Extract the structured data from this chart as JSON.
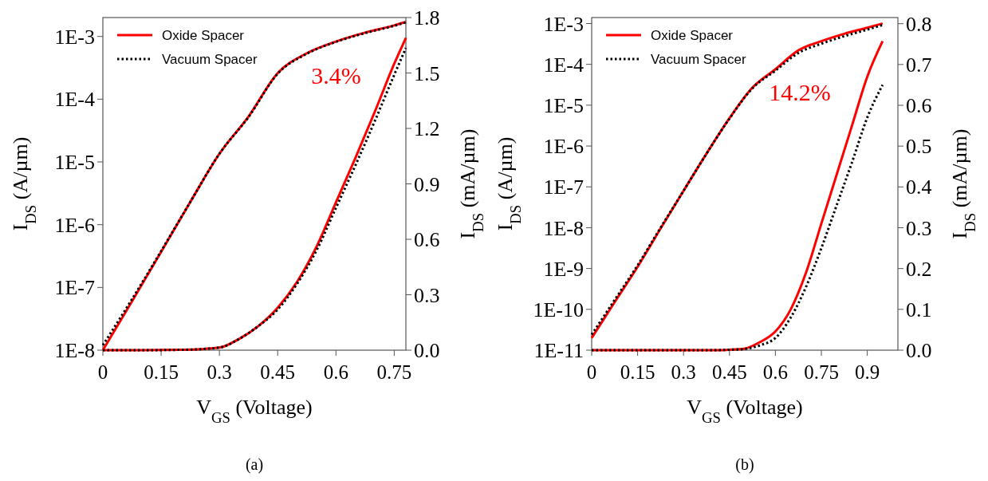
{
  "chart_data": [
    {
      "type": "line",
      "xlabel": "V$_{GS}$ (Voltage)",
      "ylabel": "I$_{DS}$ (A/µm)",
      "y2label": "I$_{DS}$ (mA/µm)",
      "log": "y",
      "legend": "top left",
      "xlim": [
        0,
        0.78
      ],
      "xticks": [
        0,
        0.15,
        0.3,
        0.45,
        0.6,
        0.75
      ],
      "ylim": [
        1e-08,
        0.002
      ],
      "yticks": [
        {
          "value": 1e-08,
          "label": "1E-8"
        },
        {
          "value": 1e-07,
          "label": "1E-7"
        },
        {
          "value": 1e-06,
          "label": "1E-6"
        },
        {
          "value": 1e-05,
          "label": "1E-5"
        },
        {
          "value": 0.0001,
          "label": "1E-4"
        },
        {
          "value": 0.001,
          "label": "1E-3"
        }
      ],
      "y2lim": [
        0,
        1.8
      ],
      "y2ticks": [
        {
          "value": 0,
          "label": "0.0"
        },
        {
          "value": 0.3,
          "label": "0.3"
        },
        {
          "value": 0.6,
          "label": "0.6"
        },
        {
          "value": 0.9,
          "label": "0.9"
        },
        {
          "value": 1.2,
          "label": "1.2"
        },
        {
          "value": 1.5,
          "label": "1.5"
        },
        {
          "value": 1.8,
          "label": "1.8"
        }
      ],
      "annotations": [
        "3.4%",
        "(a)"
      ],
      "series": [
        {
          "name": "Oxide Spacer",
          "color": "#ff0000",
          "line_style": "solid",
          "x": [
            0,
            0.075,
            0.15,
            0.225,
            0.3,
            0.375,
            0.45,
            0.525,
            0.6,
            0.675,
            0.75,
            0.78
          ],
          "values": [
            1e-08,
            6e-08,
            3.7e-07,
            2.3e-06,
            1.35e-05,
            5.3e-05,
            0.00026,
            0.00054,
            0.00083,
            0.00115,
            0.0015,
            0.0017
          ]
        },
        {
          "name": "Vacuum Spacer",
          "color": "#000000",
          "line_style": "dotted",
          "x": [
            0,
            0.075,
            0.15,
            0.225,
            0.3,
            0.375,
            0.45,
            0.525,
            0.6,
            0.675,
            0.75,
            0.78
          ],
          "values": [
            1.2e-08,
            6.5e-08,
            3.8e-07,
            2.3e-06,
            1.35e-05,
            5.2e-05,
            0.000255,
            0.00053,
            0.00082,
            0.00113,
            0.00148,
            0.00168
          ]
        },
        {
          "color": "#ff0000",
          "line_style": "solid",
          "axis": "y2",
          "x": [
            0,
            0.1,
            0.2,
            0.3,
            0.35,
            0.4,
            0.45,
            0.5,
            0.55,
            0.6,
            0.65,
            0.7,
            0.75,
            0.78
          ],
          "values": [
            0,
            0,
            0.002,
            0.014,
            0.06,
            0.13,
            0.23,
            0.37,
            0.56,
            0.8,
            1.04,
            1.29,
            1.55,
            1.69
          ]
        },
        {
          "color": "#000000",
          "line_style": "dotted",
          "axis": "y2",
          "x": [
            0,
            0.1,
            0.2,
            0.3,
            0.35,
            0.4,
            0.45,
            0.5,
            0.55,
            0.6,
            0.65,
            0.7,
            0.75,
            0.78
          ],
          "values": [
            0,
            0,
            0.002,
            0.014,
            0.06,
            0.13,
            0.22,
            0.36,
            0.54,
            0.77,
            1.0,
            1.24,
            1.49,
            1.635
          ]
        }
      ]
    },
    {
      "type": "line",
      "xlabel": "V$_{GS}$ (Voltage)",
      "ylabel": "I$_{DS}$ (A/µm)",
      "y2label": "I$_{DS}$ (mA/µm)",
      "log": "y",
      "legend": "top left",
      "xlim": [
        0,
        1.0
      ],
      "xticks": [
        0,
        0.15,
        0.3,
        0.45,
        0.6,
        0.75,
        0.9
      ],
      "ylim": [
        1e-11,
        0.0014
      ],
      "yticks": [
        {
          "value": 1e-11,
          "label": "1E-11"
        },
        {
          "value": 1e-10,
          "label": "1E-10"
        },
        {
          "value": 1e-09,
          "label": "1E-9"
        },
        {
          "value": 1e-08,
          "label": "1E-8"
        },
        {
          "value": 1e-07,
          "label": "1E-7"
        },
        {
          "value": 1e-06,
          "label": "1E-6"
        },
        {
          "value": 1e-05,
          "label": "1E-5"
        },
        {
          "value": 0.0001,
          "label": "1E-4"
        },
        {
          "value": 0.001,
          "label": "1E-3"
        }
      ],
      "y2lim": [
        0,
        0.815
      ],
      "y2ticks": [
        {
          "value": 0,
          "label": "0.0"
        },
        0.1,
        0.2,
        0.3,
        0.4,
        0.5,
        0.6,
        0.7,
        0.8
      ],
      "annotations": [
        "14.2%",
        "(b)"
      ],
      "series": [
        {
          "name": "Oxide Spacer",
          "color": "#ff0000",
          "line_style": "solid",
          "x": [
            0,
            0.075,
            0.15,
            0.225,
            0.3,
            0.375,
            0.45,
            0.525,
            0.6,
            0.675,
            0.75,
            0.825,
            0.9,
            0.95
          ],
          "values": [
            2e-11,
            1.5e-10,
            1.1e-09,
            9.5e-09,
            8e-08,
            6.5e-07,
            4.8e-06,
            2.7e-05,
            7.6e-05,
            0.00022,
            0.00037,
            0.00056,
            0.00079,
            0.001
          ]
        },
        {
          "name": "Vacuum Spacer",
          "color": "#000000",
          "line_style": "dotted",
          "x": [
            0,
            0.075,
            0.15,
            0.225,
            0.3,
            0.375,
            0.45,
            0.525,
            0.6,
            0.675,
            0.75,
            0.825,
            0.9,
            0.95
          ],
          "values": [
            2.4e-11,
            1.7e-10,
            1.2e-09,
            1e-08,
            8e-08,
            6.5e-07,
            4.7e-06,
            2.6e-05,
            7e-05,
            0.00019,
            0.00032,
            0.00049,
            0.00071,
            0.00092
          ]
        },
        {
          "color": "#ff0000",
          "line_style": "solid",
          "axis": "y2",
          "x": [
            0,
            0.2,
            0.4,
            0.45,
            0.5,
            0.55,
            0.6,
            0.65,
            0.7,
            0.75,
            0.8,
            0.85,
            0.9,
            0.95
          ],
          "values": [
            0,
            0,
            0,
            0.001,
            0.004,
            0.02,
            0.046,
            0.1,
            0.19,
            0.31,
            0.43,
            0.55,
            0.67,
            0.757
          ]
        },
        {
          "color": "#000000",
          "line_style": "dotted",
          "axis": "y2",
          "x": [
            0,
            0.2,
            0.4,
            0.45,
            0.5,
            0.55,
            0.6,
            0.65,
            0.7,
            0.75,
            0.8,
            0.85,
            0.9,
            0.95
          ],
          "values": [
            0,
            0,
            0,
            0.001,
            0.003,
            0.012,
            0.03,
            0.08,
            0.155,
            0.25,
            0.355,
            0.46,
            0.57,
            0.65
          ]
        }
      ]
    }
  ]
}
